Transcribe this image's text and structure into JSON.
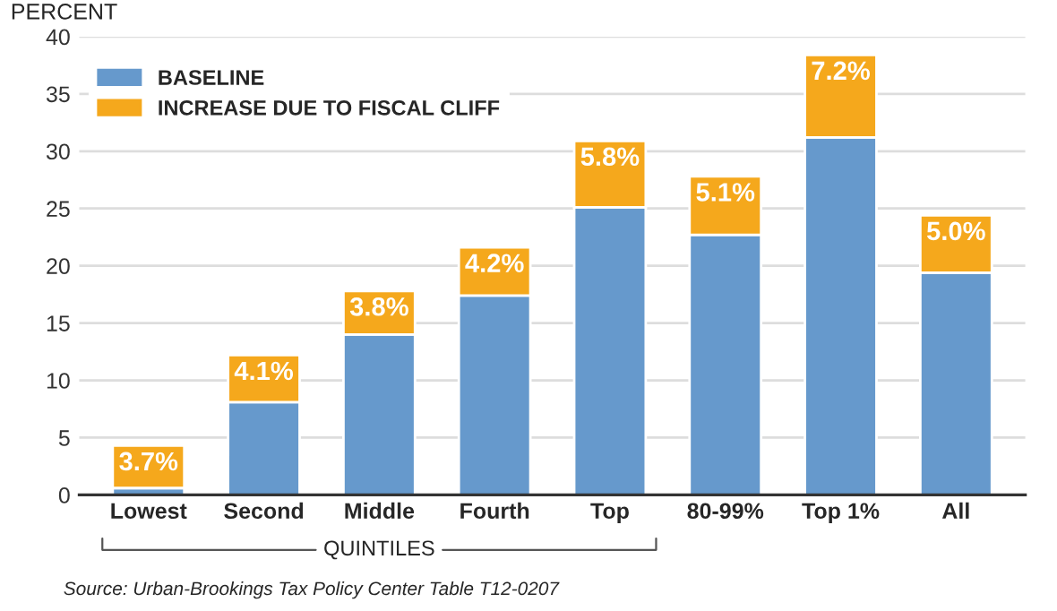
{
  "chart_data": {
    "type": "bar",
    "stacked": true,
    "ylabel": "PERCENT",
    "categories": [
      "Lowest",
      "Second",
      "Middle",
      "Fourth",
      "Top",
      "80-99%",
      "Top 1%",
      "All"
    ],
    "series": [
      {
        "name": "BASELINE",
        "color": "#6699cc",
        "values": [
          0.6,
          8.1,
          14.0,
          17.4,
          25.1,
          22.7,
          31.2,
          19.4
        ]
      },
      {
        "name": "INCREASE DUE TO FISCAL CLIFF",
        "color": "#f5a81c",
        "values": [
          3.7,
          4.1,
          3.8,
          4.2,
          5.8,
          5.1,
          7.2,
          5.0
        ],
        "value_labels": [
          "3.7%",
          "4.1%",
          "3.8%",
          "4.2%",
          "5.8%",
          "5.1%",
          "7.2%",
          "5.0%"
        ]
      }
    ],
    "ylim": [
      0,
      40
    ],
    "yticks": [
      0,
      5,
      10,
      15,
      20,
      25,
      30,
      35,
      40
    ],
    "grid": "y",
    "legend": "top left",
    "annotations": [
      "QUINTILES",
      "Source: Urban-Brookings Tax Policy Center Table T12-0207"
    ]
  }
}
